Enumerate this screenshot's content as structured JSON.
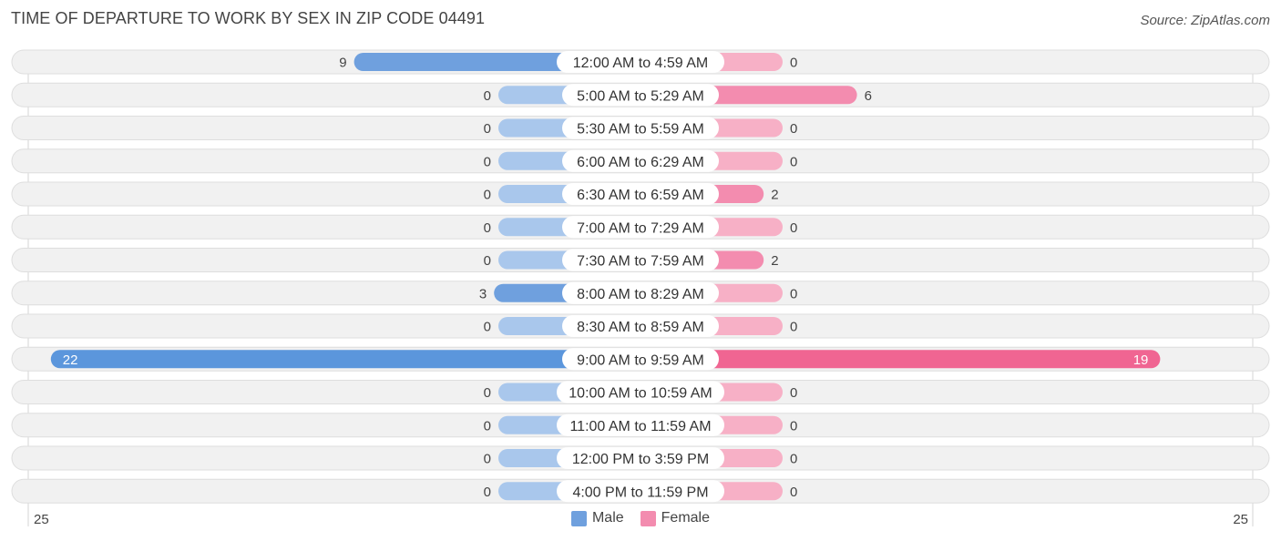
{
  "title": "TIME OF DEPARTURE TO WORK BY SEX IN ZIP CODE 04491",
  "source": "Source: ZipAtlas.com",
  "colors": {
    "male": "#6fa0de",
    "male_light": "#a9c7ec",
    "male_strong": "#5b96dc",
    "female": "#f38caf",
    "female_light": "#f7b0c6",
    "female_strong": "#f06592",
    "row_bg": "#f1f1f1",
    "row_border": "#dedede"
  },
  "chart_data": {
    "type": "bar",
    "orientation": "horizontal-diverging",
    "categories": [
      "12:00 AM to 4:59 AM",
      "5:00 AM to 5:29 AM",
      "5:30 AM to 5:59 AM",
      "6:00 AM to 6:29 AM",
      "6:30 AM to 6:59 AM",
      "7:00 AM to 7:29 AM",
      "7:30 AM to 7:59 AM",
      "8:00 AM to 8:29 AM",
      "8:30 AM to 8:59 AM",
      "9:00 AM to 9:59 AM",
      "10:00 AM to 10:59 AM",
      "11:00 AM to 11:59 AM",
      "12:00 PM to 3:59 PM",
      "4:00 PM to 11:59 PM"
    ],
    "series": [
      {
        "name": "Male",
        "values": [
          9,
          0,
          0,
          0,
          0,
          0,
          0,
          3,
          0,
          22,
          0,
          0,
          0,
          0
        ]
      },
      {
        "name": "Female",
        "values": [
          0,
          6,
          0,
          0,
          2,
          0,
          2,
          0,
          0,
          19,
          0,
          0,
          0,
          0
        ]
      }
    ],
    "xlim": [
      -25,
      25
    ],
    "axis_tick_labels": {
      "left": "25",
      "right": "25"
    },
    "legend_position": "bottom-center"
  }
}
